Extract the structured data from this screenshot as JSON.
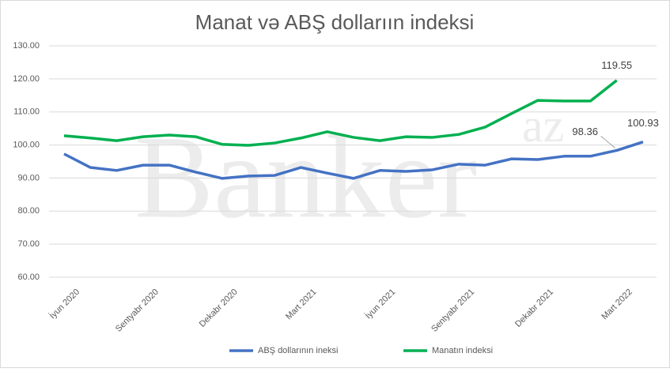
{
  "chart_data": {
    "type": "line",
    "title": "Manat və ABŞ dollarıın indeksi",
    "watermark": {
      "main": "Banker",
      "sup": "az"
    },
    "categories": [
      "İyun 2020",
      null,
      null,
      "Sentyabr 2020",
      null,
      null,
      "Dekabr 2020",
      null,
      null,
      "Mart 2021",
      null,
      null,
      "İyun 2021",
      null,
      null,
      "Sentyabr 2021",
      null,
      null,
      "Dekabr 2021",
      null,
      null,
      "Mart 2022",
      null
    ],
    "series": [
      {
        "name": "ABŞ dollarının ineksi",
        "color": "#4472c4",
        "values": [
          97.3,
          93.2,
          92.3,
          93.9,
          93.9,
          91.8,
          89.9,
          90.6,
          90.8,
          93.2,
          91.5,
          89.9,
          92.3,
          92.0,
          92.5,
          94.2,
          93.9,
          95.8,
          95.6,
          96.6,
          96.6,
          98.36,
          100.93
        ],
        "value_labels": [
          null,
          null,
          null,
          null,
          null,
          null,
          null,
          null,
          null,
          null,
          null,
          null,
          null,
          null,
          null,
          null,
          null,
          null,
          null,
          null,
          null,
          "98.36",
          "100.93"
        ]
      },
      {
        "name": "Manatın indeksi",
        "color": "#00b050",
        "values": [
          102.8,
          102.1,
          101.3,
          102.5,
          103.0,
          102.5,
          100.2,
          99.9,
          100.6,
          102.1,
          104.0,
          102.3,
          101.3,
          102.5,
          102.3,
          103.2,
          105.4,
          109.5,
          113.5,
          113.3,
          113.3,
          119.55,
          null
        ],
        "value_labels": [
          null,
          null,
          null,
          null,
          null,
          null,
          null,
          null,
          null,
          null,
          null,
          null,
          null,
          null,
          null,
          null,
          null,
          null,
          null,
          null,
          null,
          "119.55",
          null
        ]
      }
    ],
    "ylim": [
      60,
      130
    ],
    "yticks": [
      {
        "value": 60,
        "label": "60.00"
      },
      {
        "value": 70,
        "label": "70.00"
      },
      {
        "value": 80,
        "label": "80.00"
      },
      {
        "value": 90,
        "label": "90.00"
      },
      {
        "value": 100,
        "label": "100.00"
      },
      {
        "value": 110,
        "label": "110.00"
      },
      {
        "value": 120,
        "label": "120.00"
      },
      {
        "value": 130,
        "label": "130.00"
      }
    ],
    "grid": true,
    "legend": "bottom"
  }
}
